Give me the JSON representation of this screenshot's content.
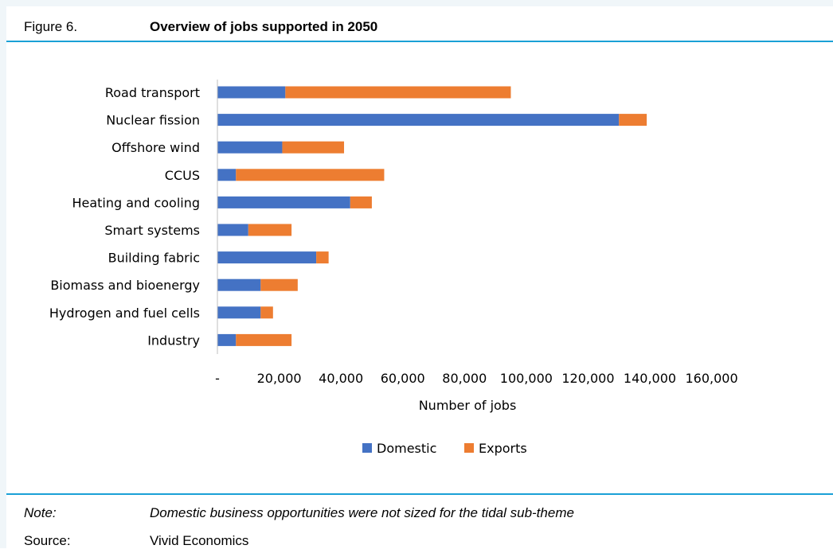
{
  "figure": {
    "label": "Figure 6.",
    "title": "Overview of jobs supported in 2050"
  },
  "note": {
    "label": "Note:",
    "text": "Domestic business opportunities were not sized for the tidal sub-theme"
  },
  "source": {
    "label": "Source:",
    "text": "Vivid Economics"
  },
  "colors": {
    "domestic": "#4472c4",
    "exports": "#ed7d31",
    "rule": "#1aa0d6"
  },
  "chart_data": {
    "type": "bar",
    "orientation": "horizontal",
    "stacked": true,
    "categories": [
      "Road transport",
      "Nuclear fission",
      "Offshore wind",
      "CCUS",
      "Heating and cooling",
      "Smart systems",
      "Building fabric",
      "Biomass and bioenergy",
      "Hydrogen and fuel cells",
      "Industry"
    ],
    "series": [
      {
        "name": "Domestic",
        "values": [
          22000,
          130000,
          21000,
          6000,
          43000,
          10000,
          32000,
          14000,
          14000,
          6000
        ]
      },
      {
        "name": "Exports",
        "values": [
          73000,
          9000,
          20000,
          48000,
          7000,
          14000,
          4000,
          12000,
          4000,
          18000
        ]
      }
    ],
    "xlabel": "Number of jobs",
    "xlim": [
      0,
      160000
    ],
    "xticks": [
      0,
      20000,
      40000,
      60000,
      80000,
      100000,
      120000,
      140000,
      160000
    ],
    "xtick_labels": [
      "-",
      "20,000",
      "40,000",
      "60,000",
      "80,000",
      "100,000",
      "120,000",
      "140,000",
      "160,000"
    ],
    "legend_position": "bottom",
    "grid": false
  }
}
